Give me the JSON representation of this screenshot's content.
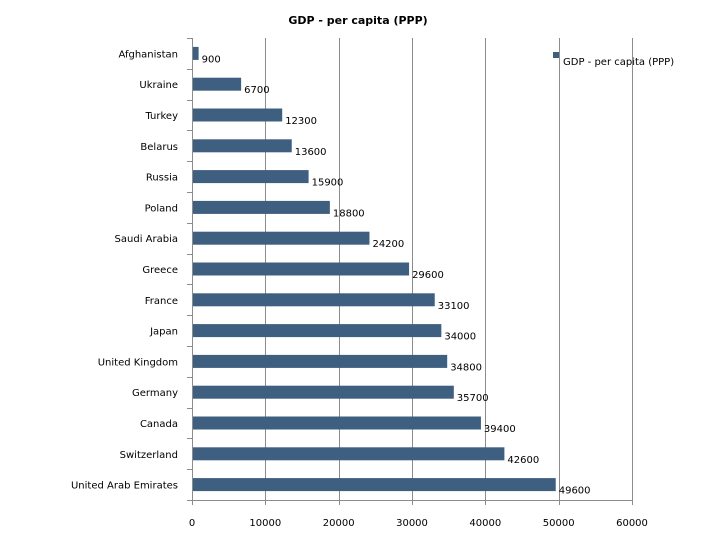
{
  "chart_data": {
    "type": "bar",
    "orientation": "horizontal",
    "title": "GDP - per capita (PPP)",
    "categories": [
      "Afghanistan",
      "Ukraine",
      "Turkey",
      "Belarus",
      "Russia",
      "Poland",
      "Saudi Arabia",
      "Greece",
      "France",
      "Japan",
      "United Kingdom",
      "Germany",
      "Canada",
      "Switzerland",
      "United Arab Emirates"
    ],
    "series": [
      {
        "name": "GDP - per capita (PPP)",
        "values": [
          900,
          6700,
          12300,
          13600,
          15900,
          18800,
          24200,
          29600,
          33100,
          34000,
          34800,
          35700,
          39400,
          42600,
          49600
        ],
        "color": "#3e5f7f"
      }
    ],
    "xlim": [
      0,
      60000
    ],
    "xticks": [
      0,
      10000,
      20000,
      30000,
      40000,
      50000,
      60000
    ],
    "grid": true,
    "legend": "top-right",
    "xlabel": "",
    "ylabel": ""
  }
}
